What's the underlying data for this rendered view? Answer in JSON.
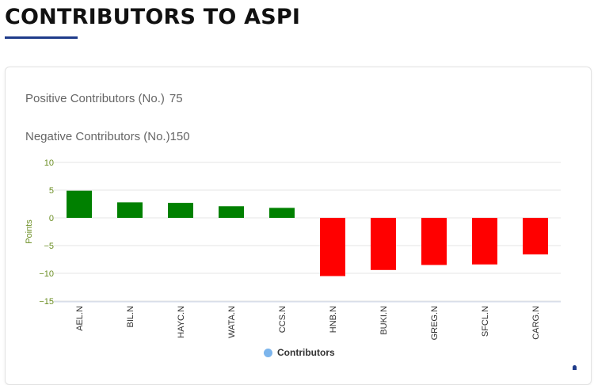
{
  "page": {
    "title": "CONTRIBUTORS TO ASPI"
  },
  "stats": {
    "positive_label": "Positive Contributors (No.)",
    "positive_value": "75",
    "negative_label": "Negative Contributors (No.)",
    "negative_value": "150"
  },
  "legend": {
    "label": "Contributors",
    "color": "#7cb5ec"
  },
  "colors": {
    "positive": "#008000",
    "negative": "#ff0000",
    "axis_text": "#6b8e23",
    "title_underline": "#1f3b8a"
  },
  "chart_data": {
    "type": "bar",
    "ylabel": "Points",
    "xlabel": "",
    "ylim": [
      -15,
      10
    ],
    "yticks": [
      10,
      5,
      0,
      -5,
      -10,
      -15
    ],
    "ytick_labels": [
      "10",
      "5",
      "0",
      "−5",
      "−10",
      "−15"
    ],
    "grid": true,
    "legend_position": "bottom-center",
    "categories": [
      "AEL.N",
      "BIL.N",
      "HAYC.N",
      "WATA.N",
      "CCS.N",
      "HNB.N",
      "BUKI.N",
      "GREG.N",
      "SFCL.N",
      "CARG.N"
    ],
    "series": [
      {
        "name": "Contributors",
        "values": [
          4.9,
          2.8,
          2.7,
          2.1,
          1.8,
          -10.5,
          -9.4,
          -8.5,
          -8.4,
          -6.6
        ]
      }
    ]
  }
}
